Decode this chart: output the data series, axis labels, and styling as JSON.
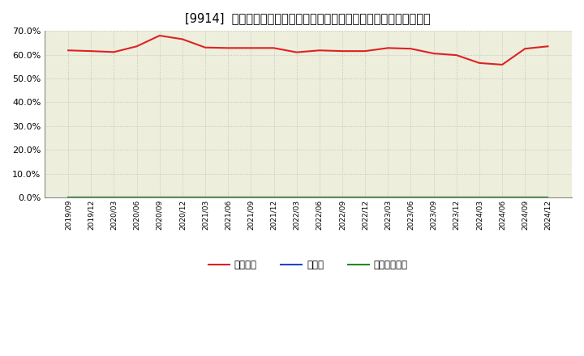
{
  "title": "[9914]  自己資本、のれん、繰延税金資産の総資産に対する比率の推移",
  "x_labels": [
    "2019/09",
    "2019/12",
    "2020/03",
    "2020/06",
    "2020/09",
    "2020/12",
    "2021/03",
    "2021/06",
    "2021/09",
    "2021/12",
    "2022/03",
    "2022/06",
    "2022/09",
    "2022/12",
    "2023/03",
    "2023/06",
    "2023/09",
    "2023/12",
    "2024/03",
    "2024/06",
    "2024/09",
    "2024/12"
  ],
  "jikoshihon": [
    61.8,
    61.5,
    61.1,
    63.5,
    68.0,
    66.5,
    63.0,
    62.8,
    62.8,
    62.8,
    61.0,
    61.8,
    61.5,
    61.5,
    62.8,
    62.5,
    60.5,
    59.8,
    56.5,
    55.8,
    62.5,
    63.5
  ],
  "noren": [
    0,
    0,
    0,
    0,
    0,
    0,
    0,
    0,
    0,
    0,
    0,
    0,
    0,
    0,
    0,
    0,
    0,
    0,
    0,
    0,
    0,
    0
  ],
  "kurinobe": [
    0,
    0,
    0,
    0,
    0,
    0,
    0,
    0,
    0,
    0,
    0,
    0,
    0,
    0,
    0,
    0,
    0,
    0,
    0,
    0,
    0,
    0
  ],
  "ylim": [
    0,
    70
  ],
  "yticks": [
    0,
    10,
    20,
    30,
    40,
    50,
    60,
    70
  ],
  "line_color_jikoshihon": "#dd2222",
  "line_color_noren": "#2244cc",
  "line_color_kurinobe": "#228822",
  "legend_labels": [
    "自己資本",
    "のれん",
    "繰延税金資産"
  ],
  "background_color": "#ffffff",
  "plot_bg_color": "#eeeedd",
  "grid_color": "#bbbbbb",
  "title_fontsize": 10.5
}
